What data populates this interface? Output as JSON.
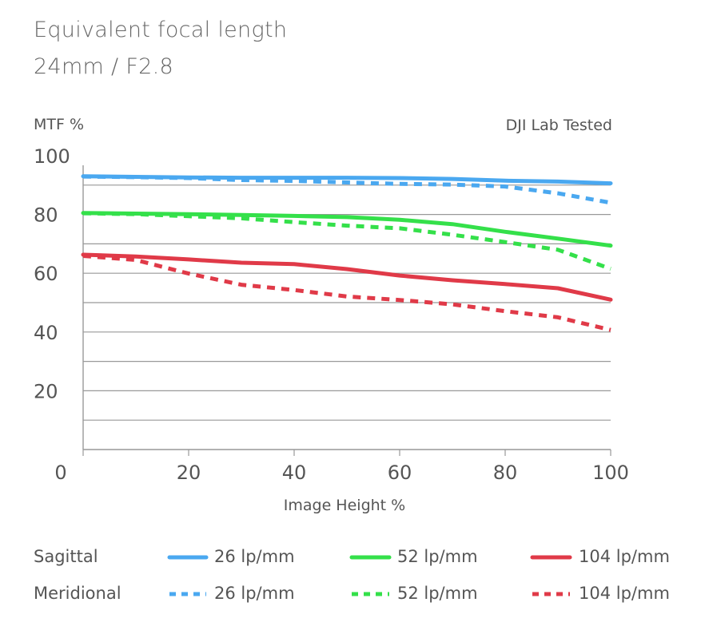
{
  "header": {
    "title_line1": "Equivalent focal length",
    "title_line2": "24mm / F2.8",
    "y_axis_label": "MTF %",
    "note": "DJI Lab Tested",
    "x_axis_label": "Image Height %"
  },
  "legend": {
    "sagittal_label": "Sagittal",
    "meridional_label": "Meridional",
    "entries": [
      "26 lp/mm",
      "52 lp/mm",
      "104 lp/mm"
    ]
  },
  "colors": {
    "blue": "#4aa8f0",
    "green": "#34e04a",
    "red": "#e03a48",
    "grid": "#999999"
  },
  "chart_data": {
    "type": "line",
    "title": "Equivalent focal length 24mm / F2.8",
    "xlabel": "Image Height %",
    "ylabel": "MTF %",
    "xlim": [
      0,
      100
    ],
    "ylim": [
      0,
      100
    ],
    "x_ticks": [
      0,
      20,
      40,
      60,
      80,
      100
    ],
    "y_ticks": [
      20,
      40,
      60,
      80,
      100
    ],
    "grid": true,
    "x": [
      0,
      10,
      20,
      30,
      40,
      50,
      60,
      70,
      80,
      90,
      100
    ],
    "series": [
      {
        "name": "Sagittal 26 lp/mm",
        "color": "blue",
        "style": "solid",
        "values": [
          93,
          92.8,
          92.6,
          92.5,
          92.5,
          92.5,
          92.4,
          92.1,
          91.5,
          91.2,
          90.6
        ]
      },
      {
        "name": "Meridional 26 lp/mm",
        "color": "blue",
        "style": "dashed",
        "values": [
          92.9,
          92.7,
          92.4,
          91.7,
          91.4,
          90.9,
          90.4,
          90.2,
          89.5,
          87.2,
          84
        ]
      },
      {
        "name": "Sagittal 52 lp/mm",
        "color": "green",
        "style": "solid",
        "values": [
          80.5,
          80.3,
          80.1,
          79.8,
          79.5,
          79.1,
          78.2,
          76.7,
          74.1,
          71.8,
          69.4
        ]
      },
      {
        "name": "Meridional 52 lp/mm",
        "color": "green",
        "style": "dashed",
        "values": [
          80.4,
          80.1,
          79.4,
          78.7,
          77.4,
          76.2,
          75.3,
          73.1,
          70.6,
          68,
          61.5
        ]
      },
      {
        "name": "Sagittal 104 lp/mm",
        "color": "red",
        "style": "solid",
        "values": [
          66.3,
          65.7,
          64.7,
          63.6,
          63.1,
          61.4,
          59.2,
          57.6,
          56.3,
          54.9,
          51
        ]
      },
      {
        "name": "Meridional 104 lp/mm",
        "color": "red",
        "style": "dashed",
        "values": [
          65.9,
          64.5,
          59.9,
          56.1,
          54.3,
          52.1,
          50.9,
          49.4,
          47.1,
          45,
          40.7
        ]
      }
    ]
  }
}
